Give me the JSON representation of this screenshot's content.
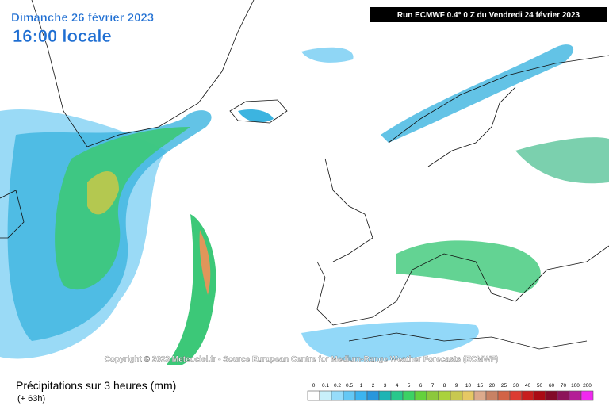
{
  "header": {
    "date": "Dimanche 26 février 2023",
    "time": "16:00 locale",
    "run": "Run ECMWF 0.4° 0 Z du Vendredi 24 février 2023"
  },
  "copyright": "Copyright © 2023 Meteociel.fr - Source European Centre for Medium-Range Weather Forecasts (ECMWF)",
  "footer": {
    "title": "Précipitations sur 3 heures (mm)",
    "lead": "(+ 63h)"
  },
  "legend": {
    "labels": [
      "0",
      "0.1",
      "0.2",
      "0.5",
      "1",
      "2",
      "3",
      "4",
      "5",
      "6",
      "7",
      "8",
      "9",
      "10",
      "15",
      "20",
      "25",
      "30",
      "40",
      "50",
      "60",
      "70",
      "100",
      "200"
    ],
    "colors": [
      "#ffffff",
      "#c8f0fa",
      "#96dcfa",
      "#64c8f5",
      "#3cb4f0",
      "#2896dc",
      "#1eb4b4",
      "#28c88c",
      "#3cd264",
      "#64d23c",
      "#8cc83c",
      "#aad23c",
      "#c8c850",
      "#e6c864",
      "#dcaa8c",
      "#c88264",
      "#d26446",
      "#dc3c32",
      "#c81e1e",
      "#aa0a14",
      "#820a28",
      "#8c145a",
      "#b41e96",
      "#f028f0"
    ]
  }
}
